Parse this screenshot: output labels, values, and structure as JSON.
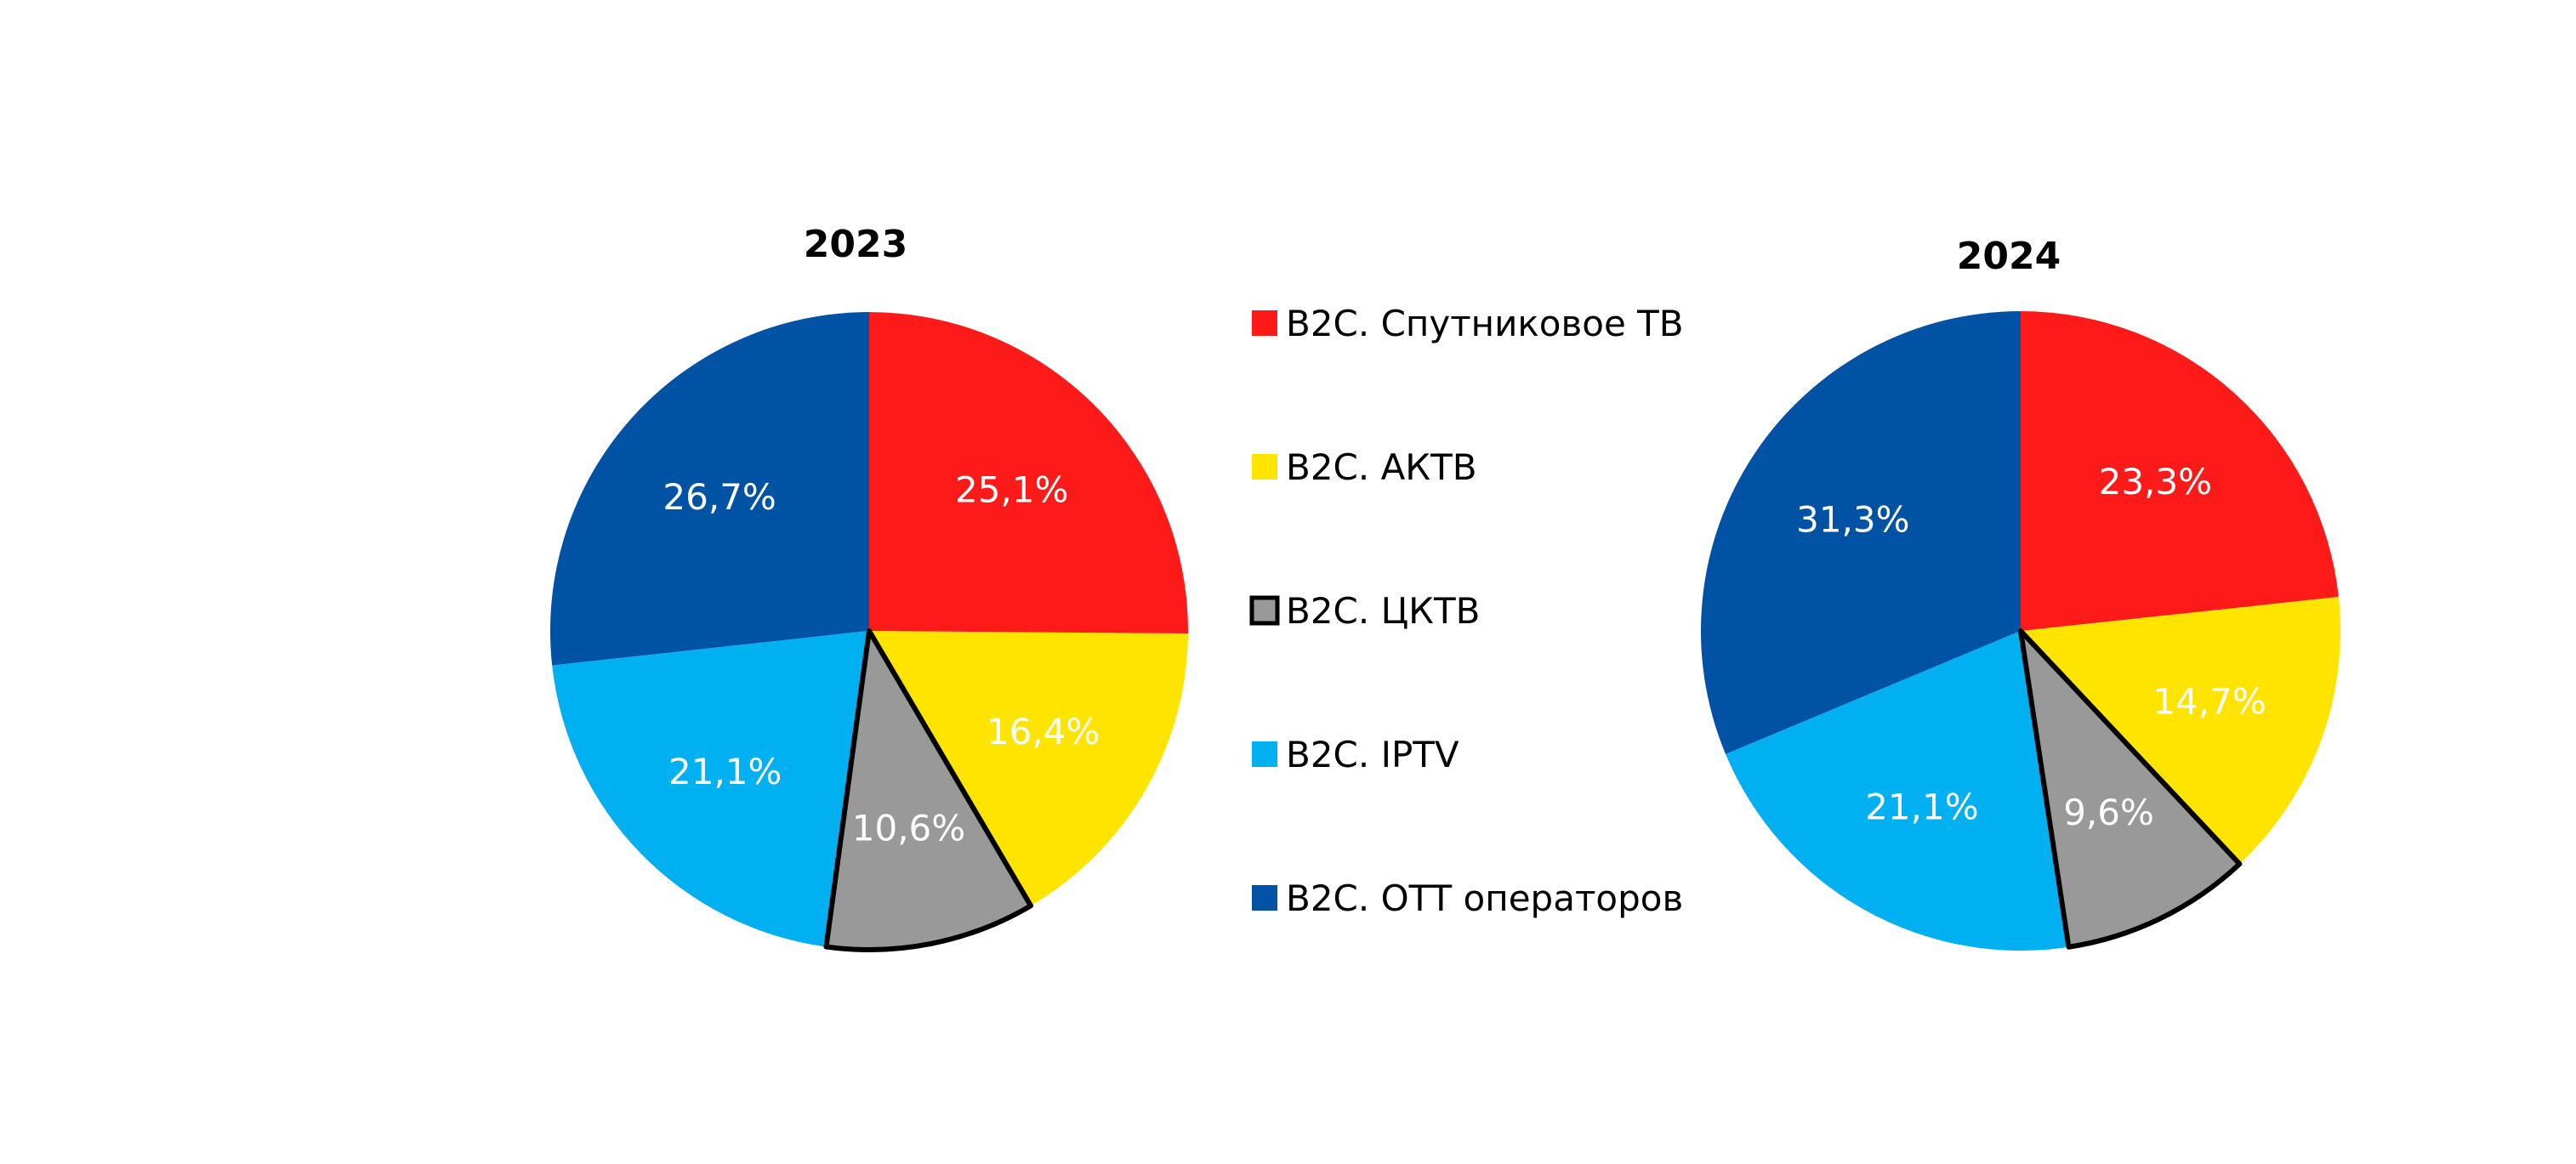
{
  "chart_data": [
    {
      "type": "pie",
      "title": "2023",
      "categories": [
        "B2C. Спутниковое ТВ",
        "B2C. АКТВ",
        "B2C. ЦКТВ",
        "B2C. IPTV",
        "B2C. OTT операторов"
      ],
      "values": [
        25.1,
        16.4,
        10.6,
        21.1,
        26.7
      ],
      "labels": [
        "25,1%",
        "16,4%",
        "10,6%",
        "21,1%",
        "26,7%"
      ]
    },
    {
      "type": "pie",
      "title": "2024",
      "categories": [
        "B2C. Спутниковое ТВ",
        "B2C. АКТВ",
        "B2C. ЦКТВ",
        "B2C. IPTV",
        "B2C. OTT операторов"
      ],
      "values": [
        23.3,
        14.7,
        9.6,
        21.1,
        31.3
      ],
      "labels": [
        "23,3%",
        "14,7%",
        "9,6%",
        "21,1%",
        "31,3%"
      ]
    }
  ],
  "legend": {
    "placement": "center",
    "items": [
      {
        "label": "B2C. Спутниковое ТВ",
        "color": "#ff1a1a"
      },
      {
        "label": "B2C. АКТВ",
        "color": "#ffe400"
      },
      {
        "label": "B2C. ЦКТВ",
        "color": "#999999"
      },
      {
        "label": "B2C. IPTV",
        "color": "#00b0f0"
      },
      {
        "label": "B2C. OTT операторов",
        "color": "#0052a5"
      }
    ]
  },
  "colors": {
    "outline": "#000000",
    "label_text": "#ffffff"
  }
}
